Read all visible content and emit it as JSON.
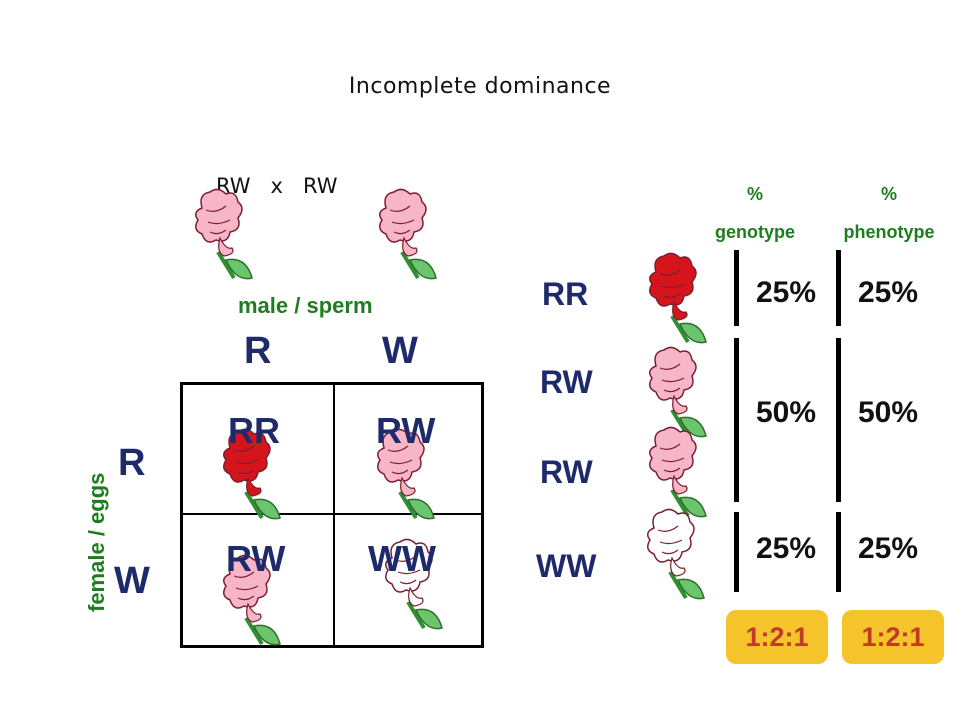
{
  "title": "Incomplete dominance",
  "cross": "RW   x   RW",
  "male_label": "male / sperm",
  "female_label": "female / eggs",
  "male_alleles": [
    "R",
    "W"
  ],
  "female_alleles": [
    "R",
    "W"
  ],
  "punnett": {
    "cells": [
      "RR",
      "RW",
      "RW",
      "WW"
    ]
  },
  "results": {
    "genotypes": [
      "RR",
      "RW",
      "RW",
      "WW"
    ],
    "header_genotype": [
      "%",
      "genotype"
    ],
    "header_phenotype": [
      "%",
      "phenotype"
    ],
    "genotype_pct": [
      "25%",
      "50%",
      "25%"
    ],
    "phenotype_pct": [
      "25%",
      "50%",
      "25%"
    ],
    "ratio_genotype": "1:2:1",
    "ratio_phenotype": "1:2:1"
  },
  "colors": {
    "red_flower": "#d6141c",
    "pink_flower": "#f7b5c8",
    "white_flower": "#ffffff",
    "label_green": "#1e7d1e",
    "label_navy": "#1f2a6b",
    "ratio_bg": "#f5c42a",
    "ratio_text": "#c0392b"
  }
}
